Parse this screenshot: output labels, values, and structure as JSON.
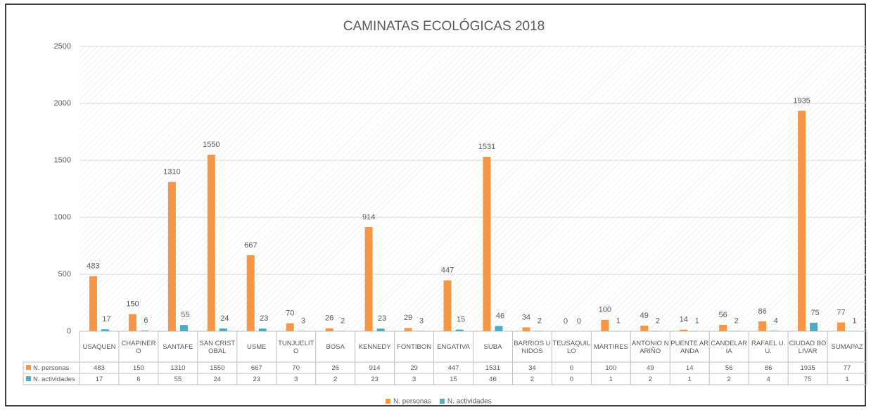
{
  "chart_data": {
    "type": "bar",
    "title": "CAMINATAS ECOLÓGICAS 2018",
    "categories": [
      "USAQUEN",
      "CHAPINERO",
      "SANTAFE",
      "SAN CRISTOBAL",
      "USME",
      "TUNJUELITO",
      "BOSA",
      "KENNEDY",
      "FONTIBON",
      "ENGATIVA",
      "SUBA",
      "BARRIOS UNIDOS",
      "TEUSAQUILLO",
      "MARTIRES",
      "ANTONIO NARIÑO",
      "PUENTE ARANDA",
      "CANDELARIA",
      "RAFAEL U. U.",
      "CIUDAD BOLIVAR",
      "SUMAPAZ"
    ],
    "series": [
      {
        "name": "N. personas",
        "color": "#f79646",
        "values": [
          483,
          150,
          1310,
          1550,
          667,
          70,
          26,
          914,
          29,
          447,
          1531,
          34,
          0,
          100,
          49,
          14,
          56,
          86,
          1935,
          77
        ]
      },
      {
        "name": "N. actividades",
        "color": "#4bacc6",
        "values": [
          17,
          6,
          55,
          24,
          23,
          3,
          2,
          23,
          3,
          15,
          46,
          2,
          0,
          1,
          2,
          1,
          2,
          4,
          75,
          1
        ]
      }
    ],
    "ylim": [
      0,
      2500
    ],
    "yticks": [
      0,
      500,
      1000,
      1500,
      2000,
      2500
    ],
    "grid": true,
    "legend": "bottom"
  }
}
